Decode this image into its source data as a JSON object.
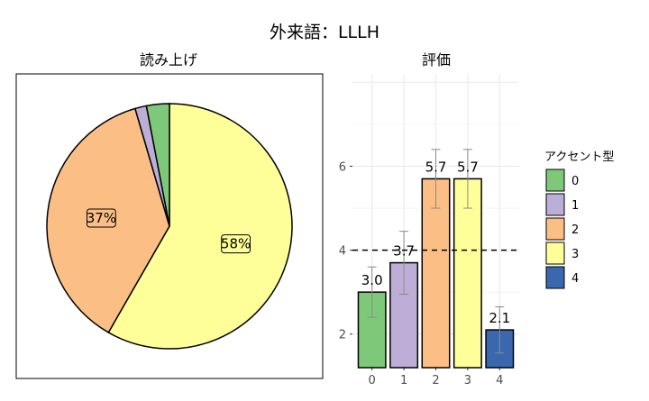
{
  "chart_data": [
    {
      "type": "pie",
      "title": "外来語：LLLH",
      "subtitle": "読み上げ",
      "categories": [
        "0",
        "1",
        "2",
        "3"
      ],
      "values": [
        3,
        1.5,
        37,
        58
      ],
      "labels": [
        {
          "category": "2",
          "text": "37%"
        },
        {
          "category": "3",
          "text": "58%"
        }
      ]
    },
    {
      "type": "bar",
      "subtitle": "評価",
      "categories": [
        "0",
        "1",
        "2",
        "3",
        "4"
      ],
      "values": [
        3.0,
        3.7,
        5.7,
        5.7,
        2.1
      ],
      "value_labels": [
        "3.0",
        "3.7",
        "5.7",
        "5.7",
        "2.1"
      ],
      "error": [
        0.6,
        0.75,
        0.7,
        0.7,
        0.55
      ],
      "reference_line": 4,
      "ylim": [
        1.2,
        8.2
      ],
      "yticks": [
        "2",
        "4",
        "6"
      ],
      "grid": true,
      "legend": {
        "title": "アクセント型",
        "entries": [
          "0",
          "1",
          "2",
          "3",
          "4"
        ],
        "position": "right"
      },
      "colors": {
        "0": "#7ec87a",
        "1": "#bcaed6",
        "2": "#fbbf86",
        "3": "#ffff99",
        "4": "#3a68ae"
      }
    }
  ]
}
